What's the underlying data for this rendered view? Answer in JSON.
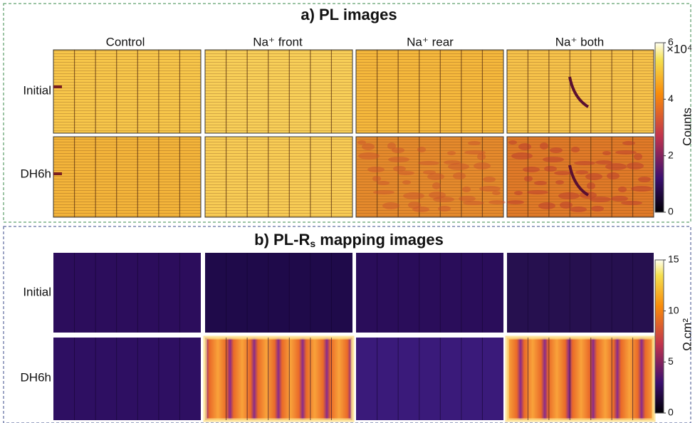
{
  "panel_a": {
    "title": "a) PL images",
    "columns": [
      "Control",
      "Na⁺ front",
      "Na⁺ rear",
      "Na⁺ both"
    ],
    "rows": [
      "Initial",
      "DH6h"
    ],
    "colorbar": {
      "ticks": [
        0,
        2,
        4,
        6
      ],
      "range": [
        0,
        6
      ],
      "multiplier": "×10⁴",
      "label": "Counts"
    }
  },
  "panel_b": {
    "title": [
      "b) PL-R",
      "s",
      " mapping images"
    ],
    "rows": [
      "Initial",
      "DH6h"
    ],
    "colorbar": {
      "ticks": [
        0,
        5,
        10,
        15
      ],
      "range": [
        0,
        15
      ],
      "label": "Ω.cm²"
    }
  }
}
